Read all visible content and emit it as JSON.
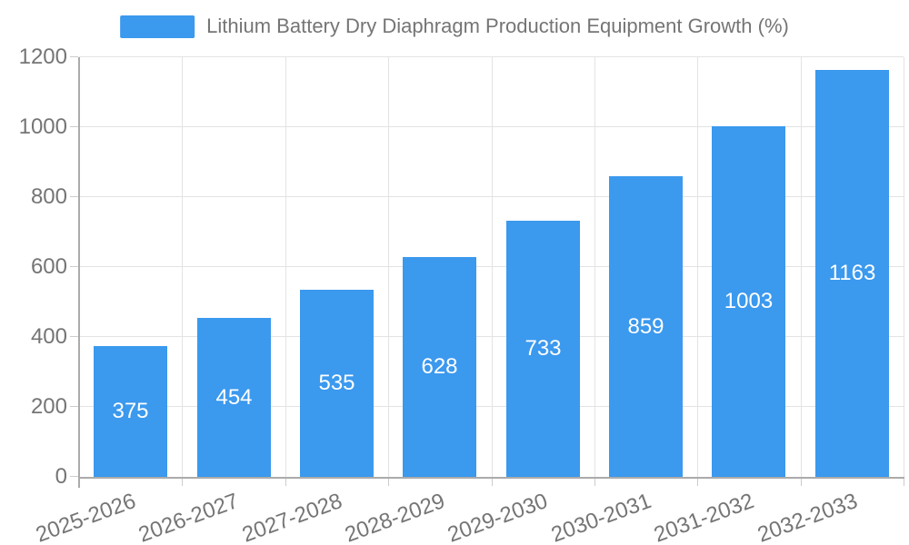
{
  "chart_data": {
    "type": "bar",
    "title": "Lithium Battery Dry Diaphragm Production Equipment Growth (%)",
    "categories": [
      "2025-2026",
      "2026-2027",
      "2027-2028",
      "2028-2029",
      "2029-2030",
      "2030-2031",
      "2031-2032",
      "2032-2033"
    ],
    "values": [
      375,
      454,
      535,
      628,
      733,
      859,
      1003,
      1163
    ],
    "yticks": [
      0,
      200,
      400,
      600,
      800,
      1000,
      1200
    ],
    "ylim": [
      0,
      1200
    ],
    "ytick_step": 200,
    "xlabel": "",
    "ylabel": "",
    "grid": true,
    "legend_position": "top",
    "x_label_rotation_deg": -20,
    "value_labels_position": "inside-center",
    "colors": {
      "bar": "#3B99EE",
      "value_label": "#FFFFFF",
      "axis_line": "#ABABAB",
      "tick": "#CCCCCC",
      "gridline": "#E3E3E3",
      "axis_text": "#757575",
      "background": "#FFFFFF"
    }
  }
}
